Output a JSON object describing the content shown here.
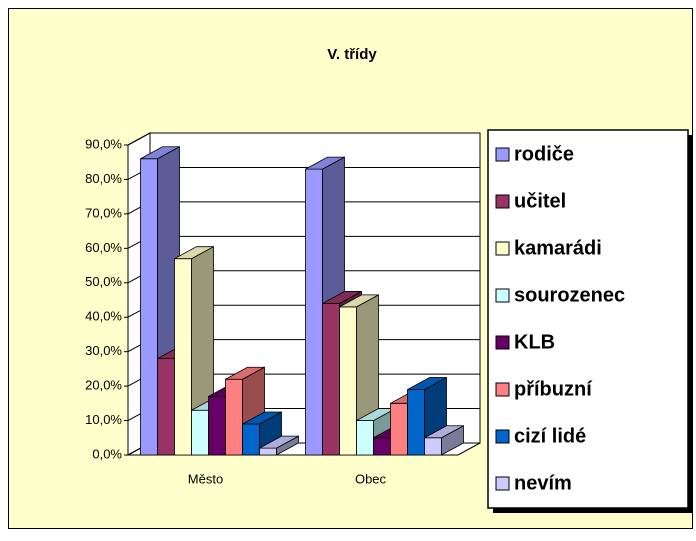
{
  "chart_data": {
    "type": "bar3d",
    "title": "V. třídy",
    "categories": [
      "Město",
      "Obec"
    ],
    "series": [
      {
        "name": "rodiče",
        "color": "#9999ff",
        "values": [
          86,
          83
        ]
      },
      {
        "name": "učitel",
        "color": "#993366",
        "values": [
          28,
          44
        ]
      },
      {
        "name": "kamarádi",
        "color": "#ffffcc",
        "values": [
          57,
          43
        ]
      },
      {
        "name": "sourozenec",
        "color": "#ccffff",
        "values": [
          13,
          10
        ]
      },
      {
        "name": "KLB",
        "color": "#660066",
        "values": [
          17,
          5
        ]
      },
      {
        "name": "příbuzní",
        "color": "#ff8080",
        "values": [
          22,
          15
        ]
      },
      {
        "name": "cizí lidé",
        "color": "#0066cc",
        "values": [
          9,
          19
        ]
      },
      {
        "name": "nevím",
        "color": "#ccccff",
        "values": [
          2,
          5
        ]
      }
    ],
    "ylim": [
      0,
      90
    ],
    "yticks": [
      {
        "value": 0,
        "label": "0,0%"
      },
      {
        "value": 10,
        "label": "10,0%"
      },
      {
        "value": 20,
        "label": "20,0%"
      },
      {
        "value": 30,
        "label": "30,0%"
      },
      {
        "value": 40,
        "label": "40,0%"
      },
      {
        "value": 50,
        "label": "50,0%"
      },
      {
        "value": 60,
        "label": "60,0%"
      },
      {
        "value": 70,
        "label": "70,0%"
      },
      {
        "value": 80,
        "label": "80,0%"
      },
      {
        "value": 90,
        "label": "90,0%"
      }
    ],
    "grid": true,
    "legend": "right"
  }
}
